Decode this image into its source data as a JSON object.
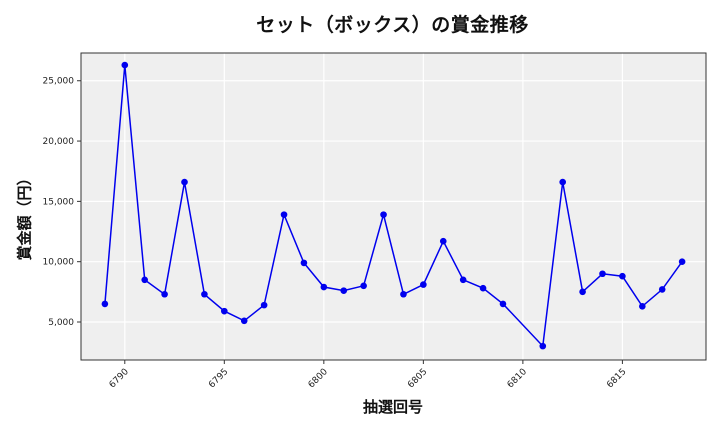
{
  "chart_data": {
    "type": "line",
    "title": "セット（ボックス）の賞金推移",
    "xlabel": "抽選回号",
    "ylabel": "賞金額（円）",
    "x": [
      6789,
      6790,
      6791,
      6792,
      6793,
      6794,
      6795,
      6796,
      6797,
      6798,
      6799,
      6800,
      6801,
      6802,
      6803,
      6804,
      6805,
      6806,
      6807,
      6808,
      6809,
      6811,
      6812,
      6813,
      6814,
      6815,
      6816,
      6817,
      6818
    ],
    "series": [
      {
        "name": "セット（ボックス）",
        "color": "#0000ee",
        "marker": "circle",
        "values": [
          6500,
          26300,
          8500,
          7300,
          16600,
          7300,
          5900,
          5100,
          6400,
          13900,
          9900,
          7900,
          7600,
          8000,
          13900,
          7300,
          8100,
          11700,
          8500,
          7800,
          6500,
          3000,
          16600,
          7500,
          9000,
          8800,
          6300,
          7700,
          10000
        ]
      }
    ],
    "xticks": [
      6790,
      6795,
      6800,
      6805,
      6810,
      6815
    ],
    "xtick_labels": [
      "6790",
      "6795",
      "6800",
      "6805",
      "6810",
      "6815"
    ],
    "yticks": [
      5000,
      10000,
      15000,
      20000,
      25000
    ],
    "ytick_labels": [
      "5,000",
      "10,000",
      "15,000",
      "20,000",
      "25,000"
    ],
    "xlim": [
      6787.8,
      6819.2
    ],
    "ylim": [
      1850,
      27300
    ],
    "grid": true,
    "legend": "none",
    "background": "#efefef"
  }
}
